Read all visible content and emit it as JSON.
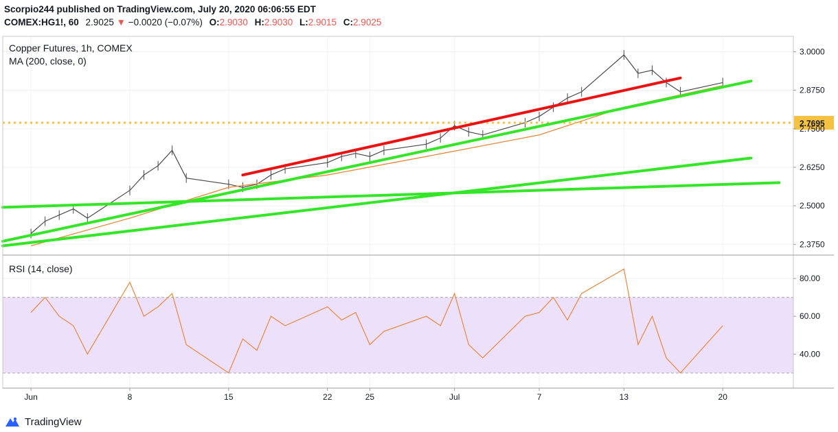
{
  "header": {
    "publisher_line": "Scorpio244 published on TradingView.com, July 20, 2020 06:06:55 EDT",
    "symbol": "COMEX:HG1!, 60",
    "last": "2.9025",
    "change_arrow": "▼",
    "change": "−0.0020 (−0.07%)",
    "open_label": "O:",
    "open": "2.9030",
    "high_label": "H:",
    "high": "2.9030",
    "low_label": "L:",
    "low": "2.9015",
    "close_label": "C:",
    "close": "2.9025"
  },
  "footer": {
    "brand": "TradingView"
  },
  "colors": {
    "candle": "#4a4a4a",
    "ma": "#e8883a",
    "rsi": "#e8883a",
    "rsi_band": "#ede0fb",
    "trend_green": "#33e626",
    "trend_red": "#ee1111",
    "dotted_level": "#f5c242",
    "down": "#ef5350"
  },
  "chart_data": [
    {
      "type": "line",
      "title": "Copper Futures, 1h, COMEX",
      "indicator_label": "MA (200, close, 0)",
      "x_ticks": [
        "Jun",
        "8",
        "15",
        "22",
        "25",
        "Jul",
        "7",
        "13",
        "20"
      ],
      "y_ticks": [
        "3.0000",
        "2.8750",
        "2.7500",
        "2.6250",
        "2.5000",
        "2.3750"
      ],
      "ylim": [
        2.34,
        3.05
      ],
      "grid": true,
      "price_label": "2.7695",
      "horizontal_level": 2.7695,
      "series": [
        {
          "name": "price",
          "x": [
            "Jun 1",
            "Jun 2",
            "Jun 3",
            "Jun 4",
            "Jun 5",
            "Jun 8",
            "Jun 9",
            "Jun 10",
            "Jun 11",
            "Jun 12",
            "Jun 15",
            "Jun 16",
            "Jun 17",
            "Jun 18",
            "Jun 19",
            "Jun 22",
            "Jun 23",
            "Jun 24",
            "Jun 25",
            "Jun 26",
            "Jun 29",
            "Jun 30",
            "Jul 1",
            "Jul 2",
            "Jul 3",
            "Jul 6",
            "Jul 7",
            "Jul 8",
            "Jul 9",
            "Jul 10",
            "Jul 13",
            "Jul 14",
            "Jul 15",
            "Jul 16",
            "Jul 17",
            "Jul 20"
          ],
          "values": [
            2.41,
            2.45,
            2.47,
            2.49,
            2.46,
            2.55,
            2.6,
            2.63,
            2.68,
            2.59,
            2.57,
            2.56,
            2.57,
            2.6,
            2.62,
            2.64,
            2.66,
            2.67,
            2.66,
            2.68,
            2.7,
            2.72,
            2.76,
            2.74,
            2.73,
            2.77,
            2.79,
            2.82,
            2.85,
            2.87,
            2.99,
            2.93,
            2.94,
            2.9,
            2.87,
            2.9
          ]
        },
        {
          "name": "MA (200, close, 0)",
          "x": [
            "Jun 1",
            "Jun 8",
            "Jun 15",
            "Jun 22",
            "Jun 29",
            "Jul 7",
            "Jul 13",
            "Jul 20"
          ],
          "values": [
            2.37,
            2.46,
            2.56,
            2.6,
            2.66,
            2.73,
            2.82,
            2.89
          ]
        }
      ],
      "trendlines": [
        {
          "color": "green",
          "from": [
            "May 29",
            2.495
          ],
          "to": [
            "Jul 24",
            2.575
          ]
        },
        {
          "color": "green",
          "from": [
            "May 29",
            2.37
          ],
          "to": [
            "Jul 22",
            2.655
          ]
        },
        {
          "color": "green",
          "from": [
            "May 29",
            2.385
          ],
          "to": [
            "Jul 22",
            2.905
          ]
        },
        {
          "color": "red",
          "from": [
            "Jun 16",
            2.6
          ],
          "to": [
            "Jul 17",
            2.915
          ]
        }
      ]
    },
    {
      "type": "line",
      "title": "RSI (14, close)",
      "y_ticks": [
        "80.00",
        "60.00",
        "40.00"
      ],
      "ylim": [
        22,
        92
      ],
      "band": [
        30,
        70
      ],
      "series": [
        {
          "name": "RSI (14, close)",
          "x": [
            "Jun 1",
            "Jun 2",
            "Jun 3",
            "Jun 4",
            "Jun 5",
            "Jun 8",
            "Jun 9",
            "Jun 10",
            "Jun 11",
            "Jun 12",
            "Jun 15",
            "Jun 16",
            "Jun 17",
            "Jun 18",
            "Jun 19",
            "Jun 22",
            "Jun 23",
            "Jun 24",
            "Jun 25",
            "Jun 26",
            "Jun 29",
            "Jun 30",
            "Jul 1",
            "Jul 2",
            "Jul 3",
            "Jul 6",
            "Jul 7",
            "Jul 8",
            "Jul 9",
            "Jul 10",
            "Jul 13",
            "Jul 14",
            "Jul 15",
            "Jul 16",
            "Jul 17",
            "Jul 20"
          ],
          "values": [
            62,
            70,
            60,
            55,
            40,
            78,
            60,
            65,
            72,
            45,
            30,
            48,
            42,
            60,
            55,
            65,
            58,
            62,
            45,
            52,
            60,
            55,
            72,
            45,
            38,
            60,
            62,
            70,
            58,
            72,
            85,
            45,
            60,
            38,
            30,
            55
          ]
        }
      ]
    }
  ]
}
